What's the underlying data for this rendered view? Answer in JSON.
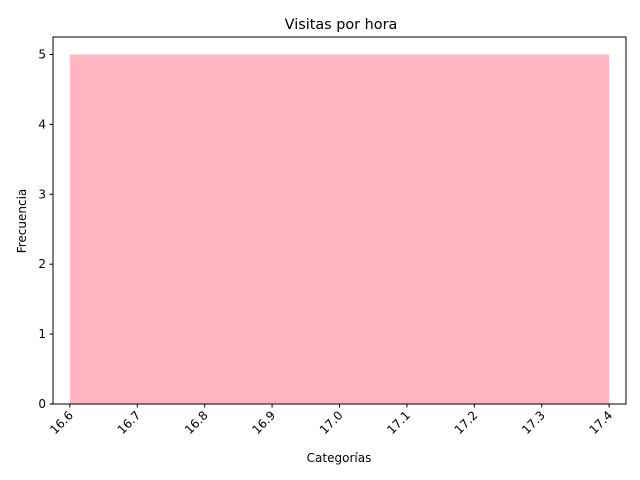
{
  "chart_data": {
    "type": "bar",
    "title": "Visitas por hora",
    "xlabel": "Categorías",
    "ylabel": "Frecuencia",
    "xlim": [
      16.575,
      17.425
    ],
    "ylim": [
      0,
      5.25
    ],
    "xticks": [
      16.6,
      16.7,
      16.8,
      16.9,
      17.0,
      17.1,
      17.2,
      17.3,
      17.4
    ],
    "xtick_labels": [
      "16.6",
      "16.7",
      "16.8",
      "16.9",
      "17.0",
      "17.1",
      "17.2",
      "17.3",
      "17.4"
    ],
    "yticks": [
      0,
      1,
      2,
      3,
      4,
      5
    ],
    "ytick_labels": [
      "0",
      "1",
      "2",
      "3",
      "4",
      "5"
    ],
    "bars": [
      {
        "x_start": 16.6,
        "x_end": 17.4,
        "value": 5
      }
    ],
    "bar_color": "#ffb6c1",
    "grid": false
  }
}
